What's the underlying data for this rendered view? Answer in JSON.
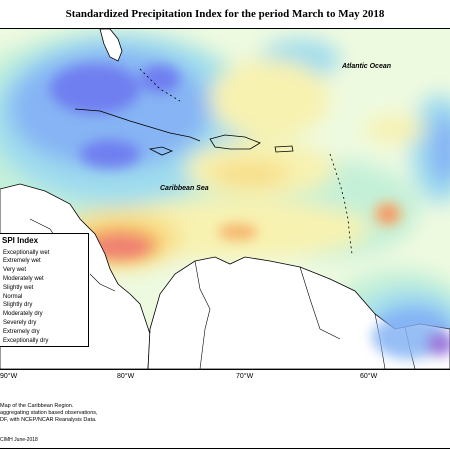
{
  "title": "Standardized Precipitation Index for the period March to May 2018",
  "labels": {
    "atlantic": "Atlantic Ocean",
    "caribbean": "Caribbean Sea"
  },
  "legend": {
    "title": "SPI Index",
    "items": [
      {
        "label": "Exceptionally wet",
        "color": "#8a64d6"
      },
      {
        "label": "Extremely wet",
        "color": "#6f7ff0"
      },
      {
        "label": "Very wet",
        "color": "#86b4f4"
      },
      {
        "label": "Moderately wet",
        "color": "#9fdcee"
      },
      {
        "label": "Slightly wet",
        "color": "#c4f0d8"
      },
      {
        "label": "Normal",
        "color": "#eefae0"
      },
      {
        "label": "Slightly dry",
        "color": "#f8f2b0"
      },
      {
        "label": "Moderately dry",
        "color": "#f8dc84"
      },
      {
        "label": "Severely dry",
        "color": "#f5b46c"
      },
      {
        "label": "Extremely dry",
        "color": "#f08272"
      },
      {
        "label": "Exceptionally dry",
        "color": "#e05a6a"
      }
    ]
  },
  "axis": {
    "lon_ticks": [
      "90°W",
      "80°W",
      "70°W",
      "60°W"
    ]
  },
  "footnote": {
    "lines": [
      "Map of the Caribbean Region.",
      "aggregating station based observations,",
      "DF, with NCEP/NCAR Reanalysis Data."
    ],
    "credit": "CIMH June-2018"
  },
  "colors": {
    "land": "#ffffff",
    "coast": "#000000"
  }
}
